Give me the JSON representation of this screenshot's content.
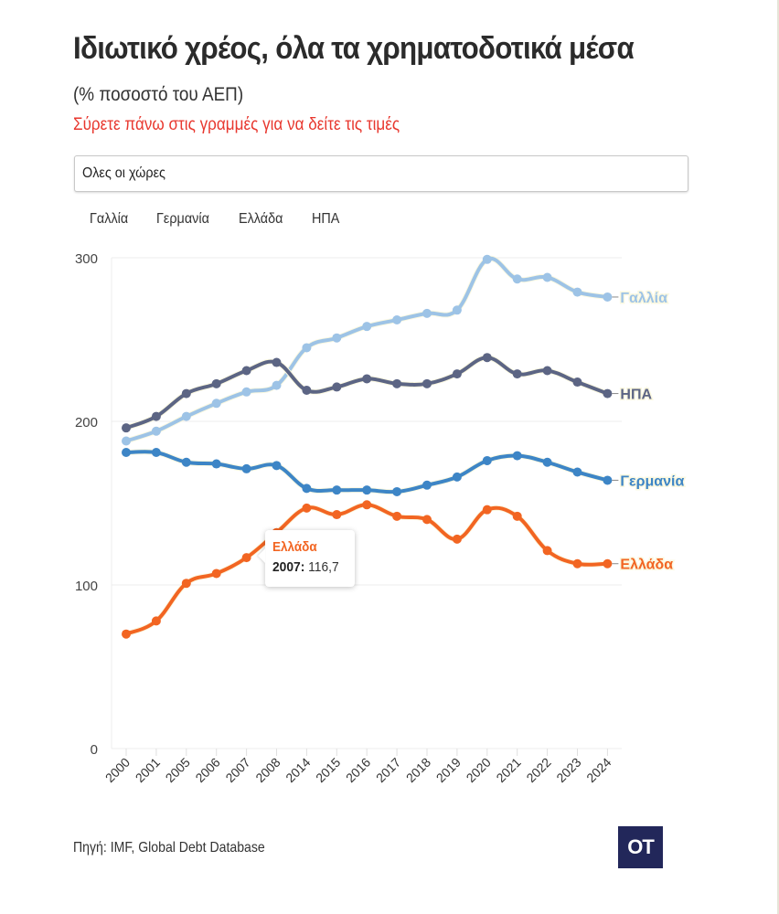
{
  "header": {
    "title": "Ιδιωτικό χρέος, όλα τα χρηματοδοτικά μέσα",
    "subtitle": "(% ποσοστό του ΑΕΠ)",
    "hint": "Σύρετε πάνω στις γραμμές για να δείτε τις τιμές"
  },
  "country_select": {
    "value": "Ολες οι χώρες"
  },
  "legend": [
    {
      "label": "Γαλλία"
    },
    {
      "label": "Γερμανία"
    },
    {
      "label": "Ελλάδα"
    },
    {
      "label": "ΗΠΑ"
    }
  ],
  "tooltip": {
    "series": "Ελλάδα",
    "year": "2007:",
    "value": "116,7"
  },
  "footer": {
    "source": "Πηγή: IMF, Global Debt Database",
    "logo": "OT"
  },
  "chart_data": {
    "type": "line",
    "title": "Ιδιωτικό χρέος, όλα τα χρηματοδοτικά μέσα",
    "subtitle": "(% ποσοστό του ΑΕΠ)",
    "xlabel": "",
    "ylabel": "",
    "ylim": [
      0,
      300
    ],
    "yticks": [
      "0",
      "100",
      "200",
      "300"
    ],
    "grid": true,
    "legend_position": "top-left",
    "categories": [
      "2000",
      "2001",
      "2005",
      "2006",
      "2007",
      "2008",
      "2014",
      "2015",
      "2016",
      "2017",
      "2018",
      "2019",
      "2020",
      "2021",
      "2022",
      "2023",
      "2024"
    ],
    "series": [
      {
        "name": "Γαλλία",
        "color": "#9dc3e6",
        "values": [
          188,
          194,
          203,
          211,
          218,
          222,
          245,
          251,
          258,
          262,
          266,
          268,
          299,
          287,
          288,
          279,
          276
        ]
      },
      {
        "name": "ΗΠΑ",
        "color": "#5c6584",
        "values": [
          196,
          203,
          217,
          223,
          231,
          236,
          219,
          221,
          226,
          223,
          223,
          229,
          239,
          229,
          231,
          224,
          217
        ]
      },
      {
        "name": "Γερμανία",
        "color": "#3d85c6",
        "values": [
          181,
          181,
          175,
          174,
          171,
          173,
          159,
          158,
          158,
          157,
          161,
          166,
          176,
          179,
          175,
          169,
          164
        ]
      },
      {
        "name": "Ελλάδα",
        "color": "#f26522",
        "values": [
          70,
          78,
          101,
          107,
          116.7,
          132,
          147,
          143,
          149,
          142,
          140,
          128,
          146,
          142,
          121,
          113,
          113
        ]
      }
    ],
    "annotation": {
      "series": "Ελλάδα",
      "year": "2007",
      "value": 116.7
    }
  }
}
